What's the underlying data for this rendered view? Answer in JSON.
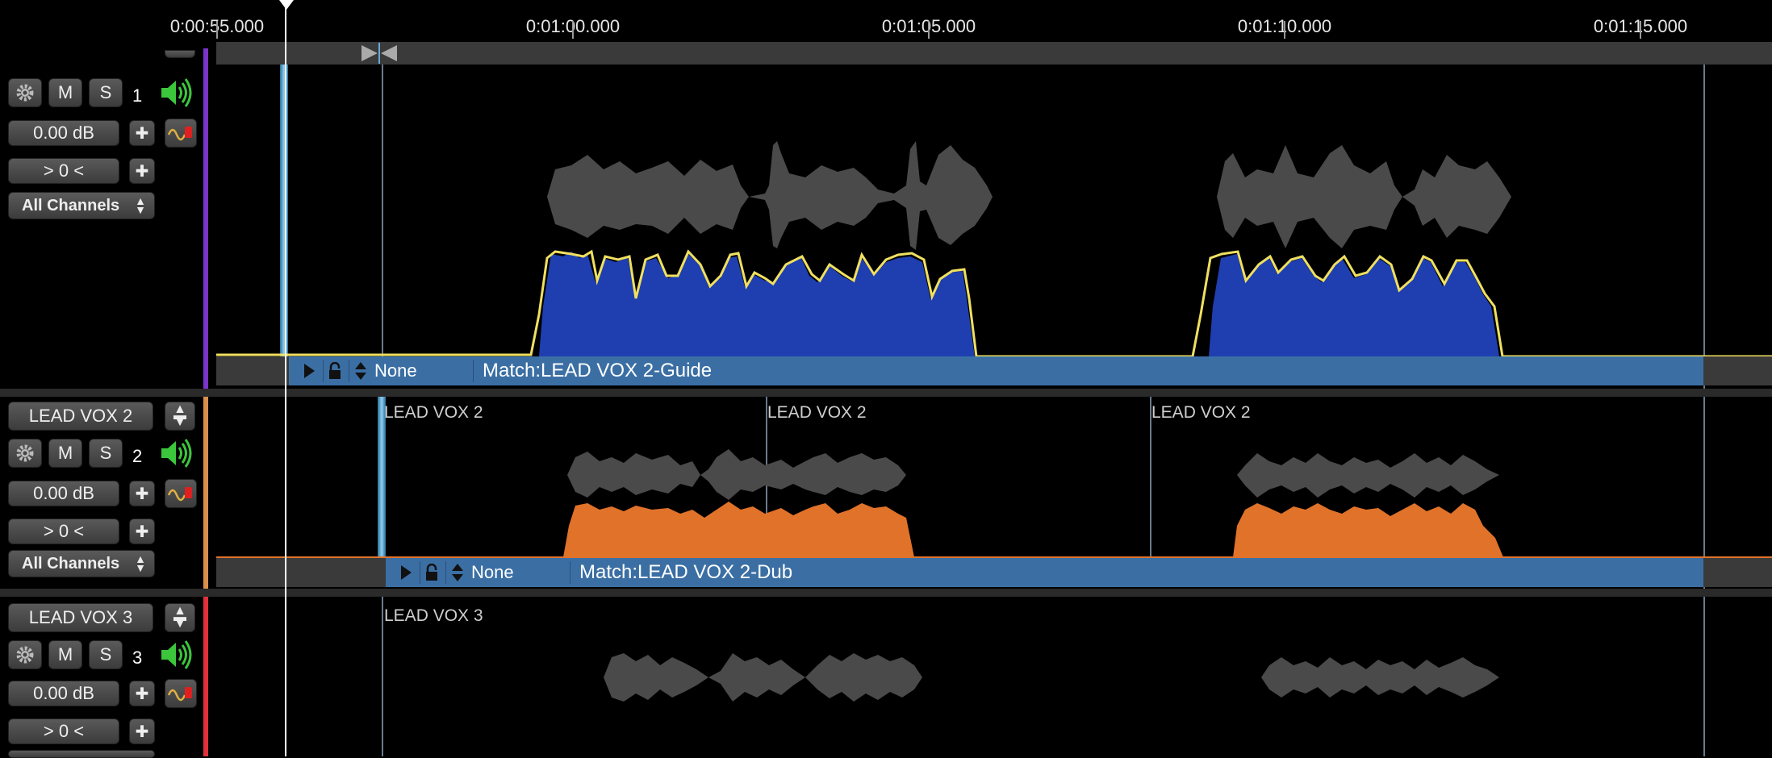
{
  "ruler": {
    "labels": [
      "0:00:55.000",
      "0:01:00.000",
      "0:01:05.000",
      "0:01:10.000",
      "0:01:15.000"
    ]
  },
  "tracks": [
    {
      "name": "",
      "number": "1",
      "gain": "0.00 dB",
      "pan": "> 0 <",
      "channels": "All Channels",
      "color": "#7a35c8",
      "clips": [],
      "bar": {
        "preset": "None",
        "match": "Match:LEAD VOX 2-Guide"
      }
    },
    {
      "name": "LEAD VOX 2",
      "number": "2",
      "gain": "0.00 dB",
      "pan": "> 0 <",
      "channels": "All Channels",
      "color": "#d9914a",
      "clips": [
        "LEAD VOX 2",
        "LEAD VOX 2",
        "LEAD VOX 2"
      ],
      "bar": {
        "preset": "None",
        "match": "Match:LEAD VOX 2-Dub"
      }
    },
    {
      "name": "LEAD VOX 3",
      "number": "3",
      "gain": "0.00 dB",
      "pan": "> 0 <",
      "color": "#e0303a",
      "clips": [
        "LEAD VOX 3"
      ]
    }
  ],
  "colors": {
    "guide_fill": "#1f3fb0",
    "guide_line": "#f0e060",
    "dub_fill": "#e0722a",
    "waveform_gray": "#4a4a4a",
    "bar_blue": "#3b6fa4"
  },
  "icons": [
    "gear-icon",
    "speaker-icon",
    "automation-icon",
    "play-icon",
    "lock-icon",
    "sort-arrows-icon",
    "sync-marker-icon",
    "menu-icon"
  ]
}
